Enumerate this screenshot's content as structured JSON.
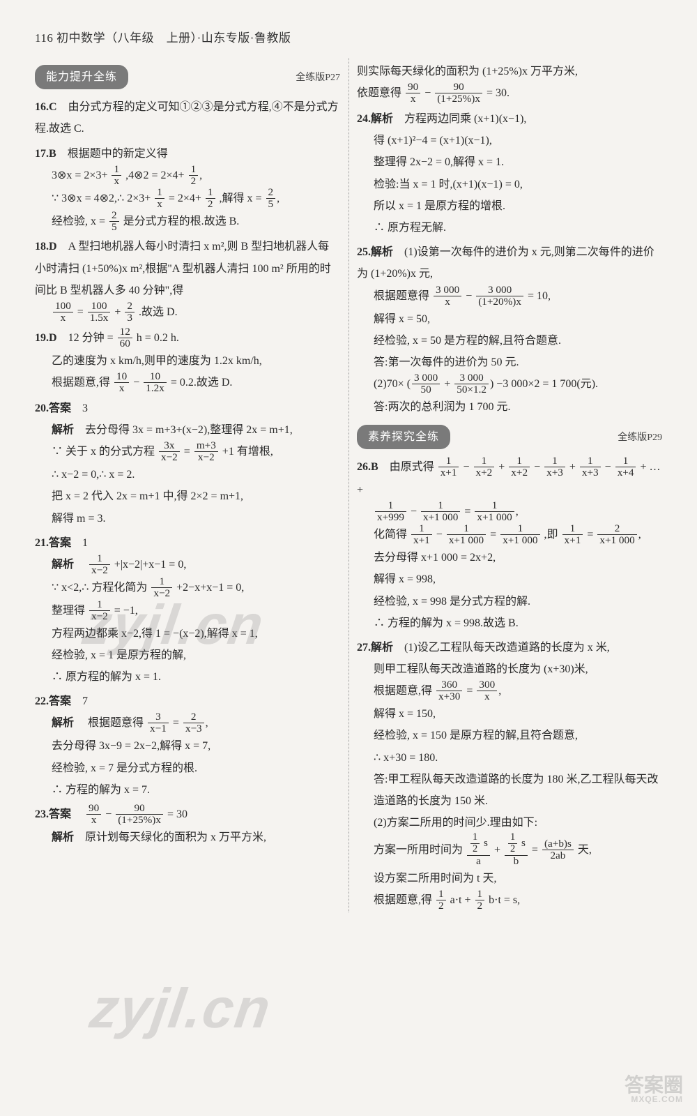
{
  "header": "116 初中数学（八年级　上册）·山东专版·鲁教版",
  "sections": {
    "s1": {
      "title": "能力提升全练",
      "ref": "全练版P27"
    },
    "s2": {
      "title": "素养探究全练",
      "ref": "全练版P29"
    }
  },
  "watermark": "zyjl.cn",
  "corner": {
    "top": "答案圈",
    "bottom": "MXQE.COM"
  },
  "t": {
    "q16": "由分式方程的定义可知①②③是分式方程,④不是分式方程.故选 C.",
    "q17": "根据题中的新定义得",
    "q17a": "3⊗x = 2×3+",
    "q17b": ",4⊗2 = 2×4+",
    "q17c": "∵ 3⊗x = 4⊗2,∴ 2×3+",
    "q17d": "= 2×4+",
    "q17e": ",解得 x =",
    "q17f": "经检验, x =",
    "q17g": " 是分式方程的根.故选 B.",
    "q18a": "A 型扫地机器人每小时清扫 x m²,则 B 型扫地机器人每小时清扫 (1+50%)x m²,根据\"A 型机器人清扫 100 m² 所用的时间比 B 型机器人多 40 分钟\",得",
    "q18b": ".故选 D.",
    "q19a": "12 分钟 =",
    "q19b": " h = 0.2 h.",
    "q19c": "乙的速度为 x km/h,则甲的速度为 1.2x km/h,",
    "q19d": "根据题意,得",
    "q19e": "= 0.2.故选 D.",
    "q20ans": "3",
    "q20a": "去分母得 3x = m+3+(x−2),整理得 2x = m+1,",
    "q20b": "∵ 关于 x 的分式方程",
    "q20c": "+1 有增根,",
    "q20d": "∴ x−2 = 0,∴ x = 2.",
    "q20e": "把 x = 2 代入 2x = m+1 中,得 2×2 = m+1,",
    "q20f": "解得 m = 3.",
    "q21ans": "1",
    "q21a": "+|x−2|+x−1 = 0,",
    "q21b": "∵ x<2,∴ 方程化简为",
    "q21c": "+2−x+x−1 = 0,",
    "q21d": "整理得",
    "q21e": "= −1,",
    "q21f": "方程两边都乘 x−2,得 1 = −(x−2),解得 x = 1,",
    "q21g": "经检验, x = 1 是原方程的解,",
    "q21h": "∴ 原方程的解为 x = 1.",
    "q22ans": "7",
    "q22a": "根据题意得",
    "q22b": "去分母得 3x−9 = 2x−2,解得 x = 7,",
    "q22c": "经检验, x = 7 是分式方程的根.",
    "q22d": "∴ 方程的解为 x = 7.",
    "q23ans_l": "= 30",
    "q23a": "原计划每天绿化的面积为 x 万平方米,",
    "r23a": "则实际每天绿化的面积为 (1+25%)x 万平方米,",
    "r23b": "依题意得",
    "r23c": "= 30.",
    "q24a": "方程两边同乘 (x+1)(x−1),",
    "q24b": "得 (x+1)²−4 = (x+1)(x−1),",
    "q24c": "整理得 2x−2 = 0,解得 x = 1.",
    "q24d": "检验:当 x = 1 时,(x+1)(x−1) = 0,",
    "q24e": "所以 x = 1 是原方程的增根.",
    "q24f": "∴ 原方程无解.",
    "q25a": "(1)设第一次每件的进价为 x 元,则第二次每件的进价为 (1+20%)x 元,",
    "q25b": "根据题意得",
    "q25c": "= 10,",
    "q25d": "解得 x = 50,",
    "q25e": "经检验, x = 50 是方程的解,且符合题意.",
    "q25f": "答:第一次每件的进价为 50 元.",
    "q25g": "(2)70×",
    "q25h": "−3 000×2 = 1 700(元).",
    "q25i": "答:两次的总利润为 1 700 元.",
    "q26a": "由原式得",
    "q26b": "+ … +",
    "q26c": "化简得",
    "q26d": ",即",
    "q26e": "去分母得 x+1 000 = 2x+2,",
    "q26f": "解得 x = 998,",
    "q26g": "经检验, x = 998 是分式方程的解.",
    "q26h": "∴ 方程的解为 x = 998.故选 B.",
    "q27a": "(1)设乙工程队每天改造道路的长度为 x 米,",
    "q27b": "则甲工程队每天改造道路的长度为 (x+30)米,",
    "q27c": "根据题意,得",
    "q27d": "解得 x = 150,",
    "q27e": "经检验, x = 150 是原方程的解,且符合题意,",
    "q27f": "∴ x+30 = 180.",
    "q27g": "答:甲工程队每天改造道路的长度为 180 米,乙工程队每天改造道路的长度为 150 米.",
    "q27h": "(2)方案二所用的时间少.理由如下:",
    "q27i": "方案一所用时间为",
    "q27j": " 天,",
    "q27k": "设方案二所用时间为 t 天,",
    "q27l": "根据题意,得",
    "labels": {
      "ans": "答案",
      "exp": "解析"
    }
  }
}
